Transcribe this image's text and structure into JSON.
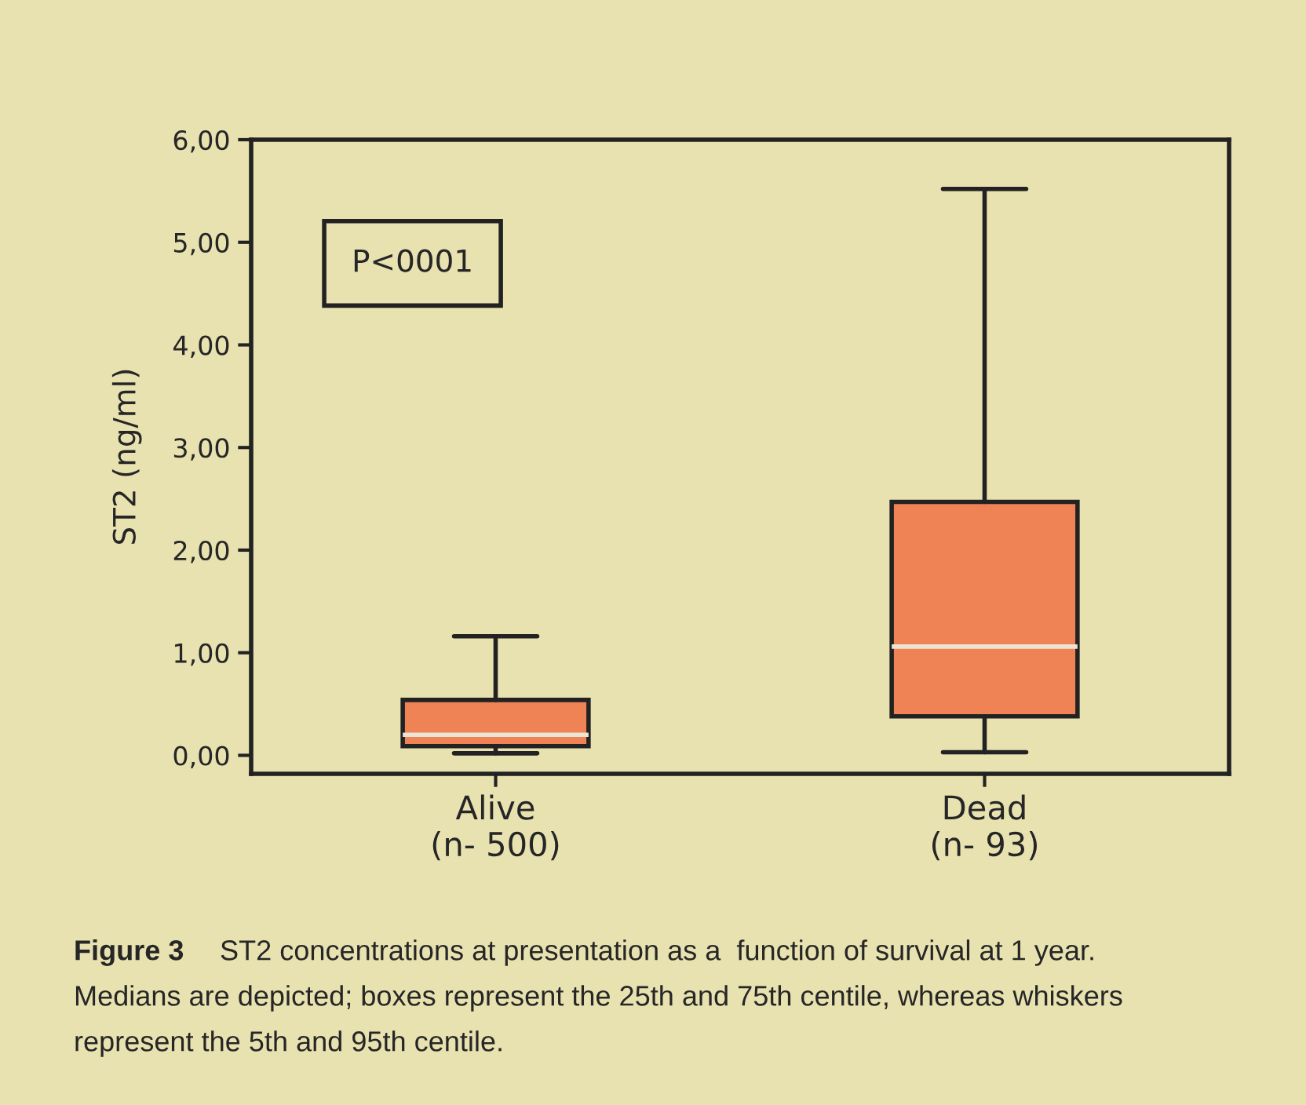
{
  "chart_data": {
    "type": "box",
    "ylabel": "ST2 (ng/ml)",
    "categories": [
      "Alive\n(n- 500)",
      "Dead\n(n- 93)"
    ],
    "boxes": [
      {
        "low": 0.02,
        "q1": 0.09,
        "median": 0.2,
        "q3": 0.54,
        "high": 1.16
      },
      {
        "low": 0.03,
        "q1": 0.38,
        "median": 1.06,
        "q3": 2.47,
        "high": 5.52
      }
    ],
    "color": "#f08356",
    "ylim": [
      -0.18,
      6.0
    ],
    "yticks": [
      {
        "value": 0,
        "label": "0,00"
      },
      {
        "value": 1,
        "label": "1,00"
      },
      {
        "value": 2,
        "label": "2,00"
      },
      {
        "value": 3,
        "label": "3,00"
      },
      {
        "value": 4,
        "label": "4,00"
      },
      {
        "value": 5,
        "label": "5,00"
      },
      {
        "value": 6,
        "label": "6,00"
      }
    ],
    "grid": false,
    "annotations": [
      "P<0001",
      "Figure 3",
      "ST2 concentrations at presentation as a  function of survival at 1 year.",
      "Medians are depicted; boxes represent the 25th and 75th centile, whereas whiskers",
      "represent the 5th and 95th centile."
    ]
  }
}
